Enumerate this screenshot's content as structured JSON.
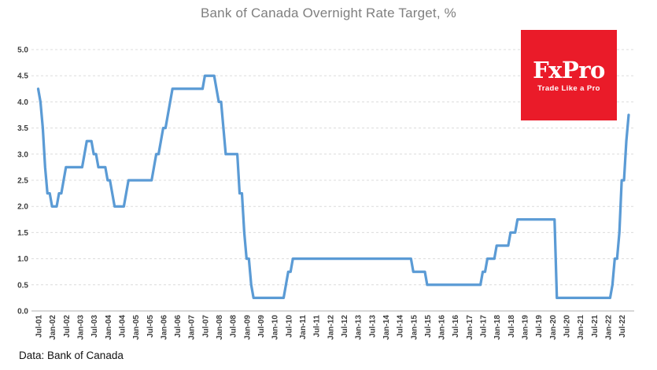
{
  "header": {
    "title": "Bank of Canada Overnight Rate Target, %"
  },
  "footer": {
    "text": "Data: Bank of Canada"
  },
  "logo": {
    "brand": "FxPro",
    "tagline": "Trade Like a Pro"
  },
  "colors": {
    "line": "#5B9BD5",
    "gridline": "#DCDCDC",
    "axis": "#BFBFBF",
    "title_text": "#7F7F7F",
    "tick_text": "#3F3F3F",
    "footer_text": "#111111",
    "logo_bg": "#EA1B29",
    "logo_text": "#FFFFFF"
  },
  "chart_data": {
    "type": "line",
    "title": "Bank of Canada Overnight Rate Target, %",
    "xlabel": "",
    "ylabel": "",
    "ylim": [
      0,
      5
    ],
    "y_tick_step": 0.5,
    "grid": "horizontal-dashed",
    "legend": "none",
    "start_month": "Jul-2001",
    "end_month": "Oct-2022",
    "frequency": "monthly",
    "x_tick_labels": [
      "Jul-01",
      "Jan-02",
      "Jul-02",
      "Jan-03",
      "Jul-03",
      "Jan-04",
      "Jul-04",
      "Jan-05",
      "Jul-05",
      "Jan-06",
      "Jul-06",
      "Jan-07",
      "Jul-07",
      "Jan-08",
      "Jul-08",
      "Jan-09",
      "Jul-09",
      "Jan-10",
      "Jul-10",
      "Jan-11",
      "Jul-11",
      "Jan-12",
      "Jul-12",
      "Jan-13",
      "Jul-13",
      "Jan-14",
      "Jul-14",
      "Jan-15",
      "Jul-15",
      "Jan-16",
      "Jul-16",
      "Jan-17",
      "Jul-17",
      "Jan-18",
      "Jul-18",
      "Jan-19",
      "Jul-19",
      "Jan-20",
      "Jul-20",
      "Jan-21",
      "Jul-21",
      "Jan-22",
      "Jul-22"
    ],
    "y_tick_labels": [
      "0.0",
      "0.5",
      "1.0",
      "1.5",
      "2.0",
      "2.5",
      "3.0",
      "3.5",
      "4.0",
      "4.5",
      "5.0"
    ],
    "series": [
      {
        "name": "Overnight Rate Target",
        "color": "#5B9BD5",
        "values": [
          4.25,
          4,
          3.5,
          2.75,
          2.25,
          2.25,
          2,
          2,
          2,
          2.25,
          2.25,
          2.5,
          2.75,
          2.75,
          2.75,
          2.75,
          2.75,
          2.75,
          2.75,
          2.75,
          3,
          3.25,
          3.25,
          3.25,
          3,
          3,
          2.75,
          2.75,
          2.75,
          2.75,
          2.5,
          2.5,
          2.25,
          2,
          2,
          2,
          2,
          2,
          2.25,
          2.5,
          2.5,
          2.5,
          2.5,
          2.5,
          2.5,
          2.5,
          2.5,
          2.5,
          2.5,
          2.5,
          2.75,
          3,
          3,
          3.25,
          3.5,
          3.5,
          3.75,
          4,
          4.25,
          4.25,
          4.25,
          4.25,
          4.25,
          4.25,
          4.25,
          4.25,
          4.25,
          4.25,
          4.25,
          4.25,
          4.25,
          4.25,
          4.5,
          4.5,
          4.5,
          4.5,
          4.5,
          4.25,
          4,
          4,
          3.5,
          3,
          3,
          3,
          3,
          3,
          3,
          2.25,
          2.25,
          1.5,
          1,
          1,
          0.5,
          0.25,
          0.25,
          0.25,
          0.25,
          0.25,
          0.25,
          0.25,
          0.25,
          0.25,
          0.25,
          0.25,
          0.25,
          0.25,
          0.25,
          0.5,
          0.75,
          0.75,
          1,
          1,
          1,
          1,
          1,
          1,
          1,
          1,
          1,
          1,
          1,
          1,
          1,
          1,
          1,
          1,
          1,
          1,
          1,
          1,
          1,
          1,
          1,
          1,
          1,
          1,
          1,
          1,
          1,
          1,
          1,
          1,
          1,
          1,
          1,
          1,
          1,
          1,
          1,
          1,
          1,
          1,
          1,
          1,
          1,
          1,
          1,
          1,
          1,
          1,
          1,
          1,
          0.75,
          0.75,
          0.75,
          0.75,
          0.75,
          0.75,
          0.5,
          0.5,
          0.5,
          0.5,
          0.5,
          0.5,
          0.5,
          0.5,
          0.5,
          0.5,
          0.5,
          0.5,
          0.5,
          0.5,
          0.5,
          0.5,
          0.5,
          0.5,
          0.5,
          0.5,
          0.5,
          0.5,
          0.5,
          0.5,
          0.75,
          0.75,
          1,
          1,
          1,
          1,
          1.25,
          1.25,
          1.25,
          1.25,
          1.25,
          1.25,
          1.5,
          1.5,
          1.5,
          1.75,
          1.75,
          1.75,
          1.75,
          1.75,
          1.75,
          1.75,
          1.75,
          1.75,
          1.75,
          1.75,
          1.75,
          1.75,
          1.75,
          1.75,
          1.75,
          1.75,
          0.25,
          0.25,
          0.25,
          0.25,
          0.25,
          0.25,
          0.25,
          0.25,
          0.25,
          0.25,
          0.25,
          0.25,
          0.25,
          0.25,
          0.25,
          0.25,
          0.25,
          0.25,
          0.25,
          0.25,
          0.25,
          0.25,
          0.25,
          0.25,
          0.5,
          1,
          1,
          1.5,
          2.5,
          2.5,
          3.25,
          3.75
        ]
      }
    ]
  }
}
